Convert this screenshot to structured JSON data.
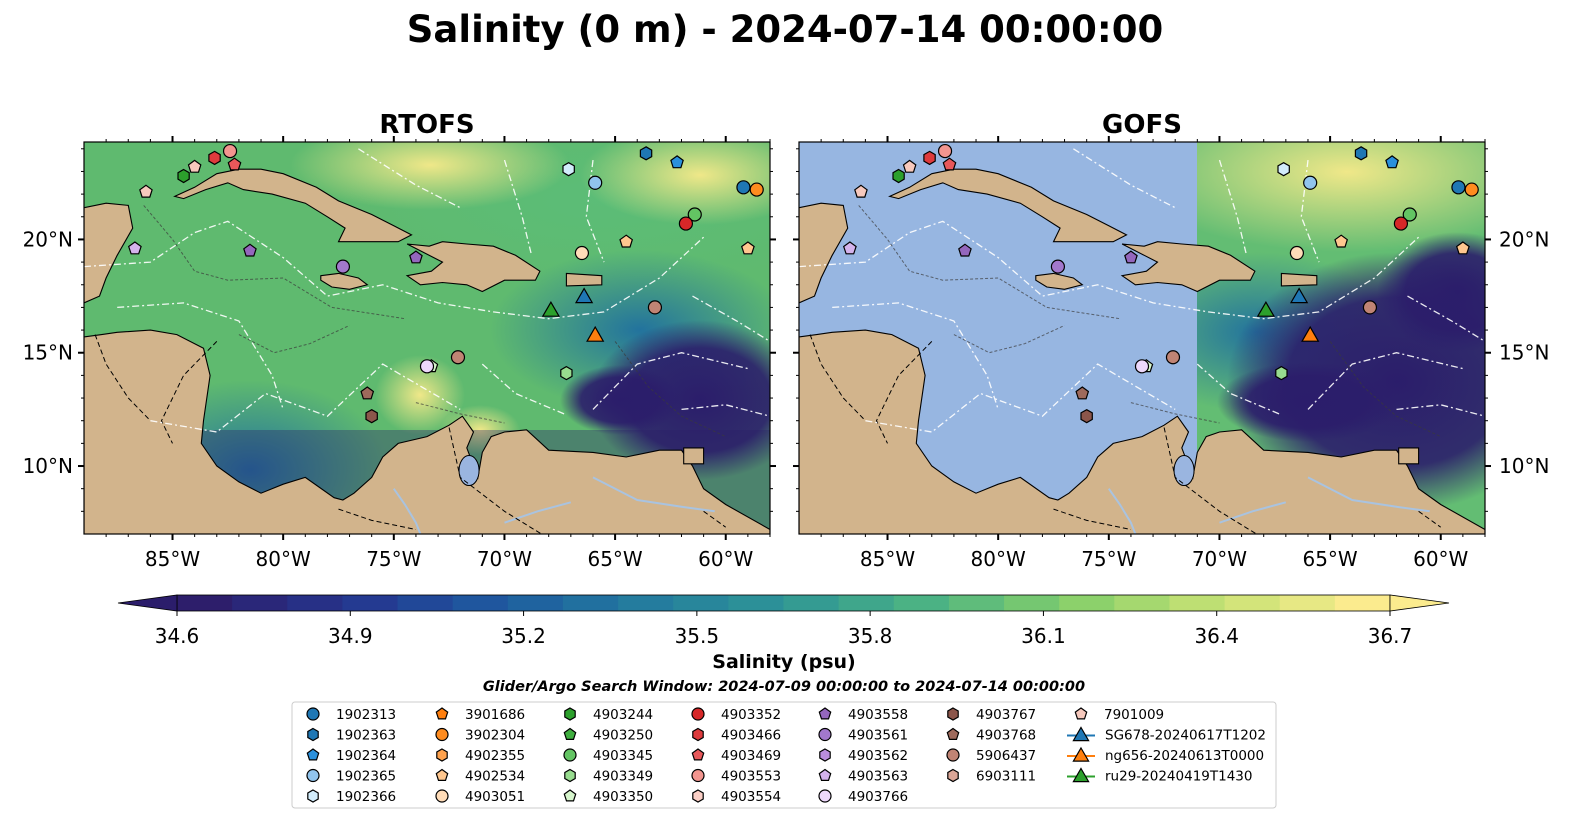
{
  "figure": {
    "title": "Salinity (0 m) - 2024-07-14 00:00:00"
  },
  "panels": [
    {
      "title": "RTOFS"
    },
    {
      "title": "GOFS"
    }
  ],
  "map": {
    "lon_range": [
      -89,
      -58
    ],
    "lat_range": [
      7,
      24.3
    ],
    "lon_ticks": [
      "85°W",
      "80°W",
      "75°W",
      "70°W",
      "65°W",
      "60°W"
    ],
    "lat_ticks": [
      "20°N",
      "15°N",
      "10°N"
    ],
    "gofs_missing_west_of": "71°W",
    "colors": {
      "land": "#d2b48c",
      "missing_data": "#9ab5e0",
      "rivers": "#a9c3e0"
    }
  },
  "colorbar": {
    "label": "Salinity (psu)",
    "ticks": [
      "34.6",
      "34.9",
      "35.2",
      "35.5",
      "35.8",
      "36.1",
      "36.4",
      "36.7"
    ],
    "colormap_stops": [
      "#2d1e6b",
      "#25358f",
      "#1e5aa0",
      "#237b9e",
      "#2e9596",
      "#4cb383",
      "#86cf6a",
      "#c7e274",
      "#fbeb8e"
    ]
  },
  "legend": {
    "subtitle": "Glider/Argo Search Window: 2024-07-09 00:00:00 to 2024-07-14 00:00:00",
    "entries": [
      {
        "label": "1902313",
        "color": "#1f77b4",
        "marker": "circle"
      },
      {
        "label": "1902363",
        "color": "#1f77b4",
        "marker": "hexagon"
      },
      {
        "label": "1902364",
        "color": "#2a90dc",
        "marker": "pentagon"
      },
      {
        "label": "1902365",
        "color": "#91c4ed",
        "marker": "circle"
      },
      {
        "label": "1902366",
        "color": "#d2ecfb",
        "marker": "hexagon"
      },
      {
        "label": "3901686",
        "color": "#ff7f0e",
        "marker": "pentagon"
      },
      {
        "label": "3902304",
        "color": "#ff8c1f",
        "marker": "circle"
      },
      {
        "label": "4902355",
        "color": "#ffa24d",
        "marker": "hexagon"
      },
      {
        "label": "4902534",
        "color": "#ffc78f",
        "marker": "pentagon"
      },
      {
        "label": "4903051",
        "color": "#ffdcb8",
        "marker": "circle"
      },
      {
        "label": "4903244",
        "color": "#2ca02c",
        "marker": "hexagon"
      },
      {
        "label": "4903250",
        "color": "#3fae3f",
        "marker": "pentagon"
      },
      {
        "label": "4903345",
        "color": "#63c463",
        "marker": "circle"
      },
      {
        "label": "4903349",
        "color": "#98dc8f",
        "marker": "hexagon"
      },
      {
        "label": "4903350",
        "color": "#d6f5cc",
        "marker": "pentagon"
      },
      {
        "label": "4903352",
        "color": "#d62728",
        "marker": "circle"
      },
      {
        "label": "4903466",
        "color": "#de3b3d",
        "marker": "hexagon"
      },
      {
        "label": "4903469",
        "color": "#e8585a",
        "marker": "pentagon"
      },
      {
        "label": "4903553",
        "color": "#f2958f",
        "marker": "circle"
      },
      {
        "label": "4903554",
        "color": "#fbcfc6",
        "marker": "hexagon"
      },
      {
        "label": "4903558",
        "color": "#9467bd",
        "marker": "pentagon"
      },
      {
        "label": "4903561",
        "color": "#a278cc",
        "marker": "circle"
      },
      {
        "label": "4903562",
        "color": "#b98ddc",
        "marker": "hexagon"
      },
      {
        "label": "4903563",
        "color": "#d4b3ec",
        "marker": "pentagon"
      },
      {
        "label": "4903766",
        "color": "#edd8fb",
        "marker": "circle"
      },
      {
        "label": "4903767",
        "color": "#8c564b",
        "marker": "hexagon"
      },
      {
        "label": "4903768",
        "color": "#9e6a5c",
        "marker": "pentagon"
      },
      {
        "label": "5906437",
        "color": "#c08474",
        "marker": "circle"
      },
      {
        "label": "6903111",
        "color": "#dba697",
        "marker": "hexagon"
      },
      {
        "label": "7901009",
        "color": "#f7c9bd",
        "marker": "pentagon"
      },
      {
        "label": "SG678-20240617T1202",
        "color": "#1f77b4",
        "marker": "triangle"
      },
      {
        "label": "ng656-20240613T0000",
        "color": "#ff7f0e",
        "marker": "triangle"
      },
      {
        "label": "ru29-20240419T1430",
        "color": "#2ca02c",
        "marker": "triangle"
      }
    ]
  },
  "observations": [
    {
      "lon": -84.5,
      "lat": 22.8,
      "entry": "4903244"
    },
    {
      "lon": -84.0,
      "lat": 23.2,
      "entry": "7901009"
    },
    {
      "lon": -83.1,
      "lat": 23.6,
      "entry": "4903466"
    },
    {
      "lon": -82.4,
      "lat": 23.9,
      "entry": "4903553"
    },
    {
      "lon": -82.2,
      "lat": 23.3,
      "entry": "4903469"
    },
    {
      "lon": -86.2,
      "lat": 22.1,
      "entry": "7901009"
    },
    {
      "lon": -86.7,
      "lat": 19.6,
      "entry": "4903563"
    },
    {
      "lon": -81.5,
      "lat": 19.5,
      "entry": "4903558"
    },
    {
      "lon": -77.3,
      "lat": 18.8,
      "entry": "4903561"
    },
    {
      "lon": -74.0,
      "lat": 19.2,
      "entry": "4903558"
    },
    {
      "lon": -67.1,
      "lat": 23.1,
      "entry": "1902366"
    },
    {
      "lon": -63.6,
      "lat": 23.8,
      "entry": "1902363"
    },
    {
      "lon": -62.2,
      "lat": 23.4,
      "entry": "1902364"
    },
    {
      "lon": -65.9,
      "lat": 22.5,
      "entry": "1902365"
    },
    {
      "lon": -59.2,
      "lat": 22.3,
      "entry": "1902313"
    },
    {
      "lon": -58.6,
      "lat": 22.2,
      "entry": "3902304"
    },
    {
      "lon": -61.4,
      "lat": 21.1,
      "entry": "4903345"
    },
    {
      "lon": -61.8,
      "lat": 20.7,
      "entry": "4903352"
    },
    {
      "lon": -64.5,
      "lat": 19.9,
      "entry": "4902534"
    },
    {
      "lon": -66.5,
      "lat": 19.4,
      "entry": "4903051"
    },
    {
      "lon": -59.0,
      "lat": 19.6,
      "entry": "4902534"
    },
    {
      "lon": -63.2,
      "lat": 17.0,
      "entry": "5906437"
    },
    {
      "lon": -72.1,
      "lat": 14.8,
      "entry": "5906437"
    },
    {
      "lon": -73.3,
      "lat": 14.4,
      "entry": "4903350"
    },
    {
      "lon": -73.5,
      "lat": 14.4,
      "entry": "4903766"
    },
    {
      "lon": -67.2,
      "lat": 14.1,
      "entry": "4903349"
    },
    {
      "lon": -76.2,
      "lat": 13.2,
      "entry": "4903768"
    },
    {
      "lon": -76.0,
      "lat": 12.2,
      "entry": "4903767"
    },
    {
      "lon": -67.9,
      "lat": 16.9,
      "entry": "ru29-20240419T1430"
    },
    {
      "lon": -66.4,
      "lat": 17.5,
      "entry": "SG678-20240617T1202"
    },
    {
      "lon": -65.9,
      "lat": 15.8,
      "entry": "ng656-20240613T0000"
    }
  ]
}
